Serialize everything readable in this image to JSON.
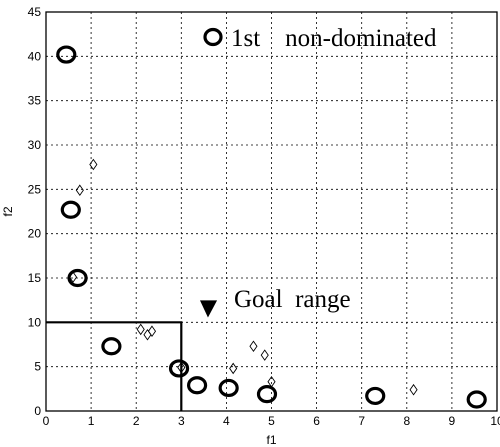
{
  "chart_data": {
    "type": "scatter",
    "xlabel": "f1",
    "ylabel": "f2",
    "xlim": [
      0,
      10
    ],
    "ylim": [
      0,
      45
    ],
    "xticks": [
      "0",
      "1",
      "2",
      "3",
      "4",
      "5",
      "6",
      "7",
      "8",
      "9",
      "10"
    ],
    "yticks": [
      "0",
      "5",
      "10",
      "15",
      "20",
      "25",
      "30",
      "35",
      "40",
      "45"
    ],
    "grid": true,
    "legend": {
      "label": "1st    non-dominated",
      "placement": "top-right"
    },
    "goal_range": {
      "label": "Goal  range",
      "f1_max": 3,
      "f2_max": 10
    },
    "series": [
      {
        "name": "1st    non-dominated",
        "marker": "circle",
        "points": [
          [
            0.45,
            40.2
          ],
          [
            0.55,
            22.7
          ],
          [
            0.7,
            15.0
          ],
          [
            1.45,
            7.3
          ],
          [
            2.95,
            4.8
          ],
          [
            3.35,
            2.9
          ],
          [
            4.05,
            2.6
          ],
          [
            4.9,
            1.9
          ],
          [
            7.3,
            1.7
          ],
          [
            9.55,
            1.3
          ]
        ]
      },
      {
        "marker": "diamond",
        "points": [
          [
            1.05,
            27.8
          ],
          [
            0.75,
            24.9
          ],
          [
            0.6,
            15.1
          ],
          [
            2.1,
            9.2
          ],
          [
            2.25,
            8.6
          ],
          [
            2.35,
            9.0
          ],
          [
            3.0,
            4.9
          ],
          [
            4.15,
            4.8
          ],
          [
            4.6,
            7.3
          ],
          [
            4.85,
            6.3
          ],
          [
            5.0,
            3.3
          ],
          [
            8.15,
            2.4
          ]
        ]
      }
    ]
  }
}
